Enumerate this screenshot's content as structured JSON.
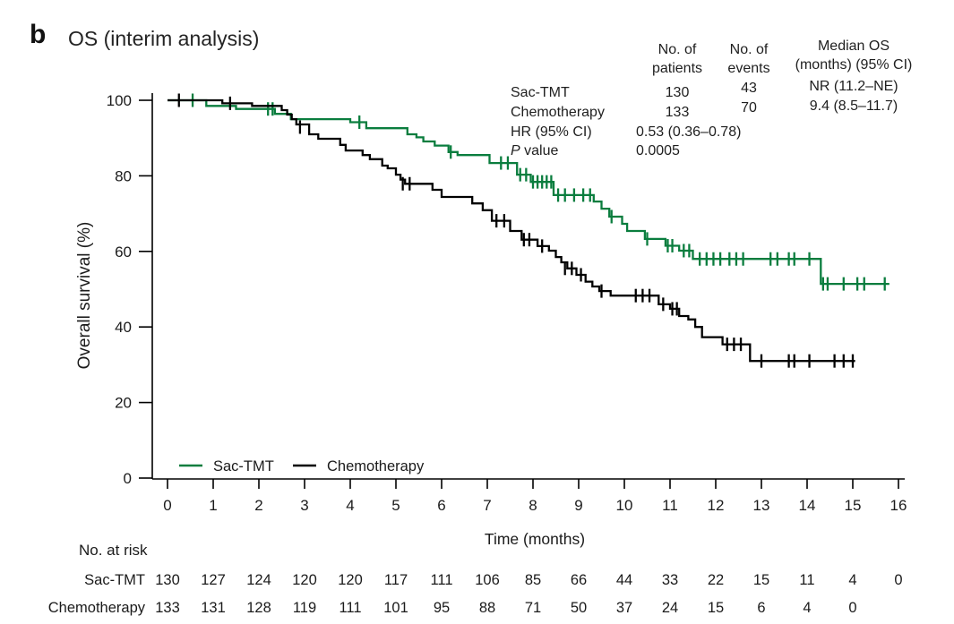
{
  "header": {
    "panel": "b",
    "title": "OS (interim analysis)"
  },
  "stats": {
    "columns": {
      "patients_header": "No. of\npatients",
      "events_header": "No. of\nevents",
      "median_header": "Median OS\n(months) (95% CI)"
    },
    "rows": [
      {
        "label": "Sac-TMT",
        "patients": "130",
        "events": "43",
        "median": "NR (11.2–NE)"
      },
      {
        "label": "Chemotherapy",
        "patients": "133",
        "events": "70",
        "median": "9.4 (8.5–11.7)"
      }
    ],
    "hr_label": "HR (95% CI)",
    "hr_value": "0.53 (0.36–0.78)",
    "p_label_italic": "P",
    "p_label_rest": " value",
    "p_value": "0.0005"
  },
  "chart_data": {
    "type": "line",
    "subtype": "kaplan-meier-step",
    "title": "OS (interim analysis)",
    "xlabel": "Time (months)",
    "ylabel": "Overall survival (%)",
    "xlim": [
      0,
      16
    ],
    "ylim": [
      0,
      100
    ],
    "xticks": [
      0,
      1,
      2,
      3,
      4,
      5,
      6,
      7,
      8,
      9,
      10,
      11,
      12,
      13,
      14,
      15,
      16
    ],
    "yticks": [
      0,
      20,
      40,
      60,
      80,
      100
    ],
    "grid": false,
    "legend_position": "inside-bottom-left",
    "series": [
      {
        "name": "Sac-TMT",
        "color": "#0a7d3e",
        "steps": [
          [
            0,
            100
          ],
          [
            0.85,
            98.5
          ],
          [
            1.5,
            97.7
          ],
          [
            2.35,
            96.4
          ],
          [
            2.7,
            95.0
          ],
          [
            4.0,
            94.2
          ],
          [
            4.35,
            92.6
          ],
          [
            5.25,
            91.0
          ],
          [
            5.45,
            90.2
          ],
          [
            5.6,
            89.1
          ],
          [
            5.85,
            88.0
          ],
          [
            6.15,
            86.3
          ],
          [
            6.35,
            85.5
          ],
          [
            7.05,
            83.4
          ],
          [
            7.65,
            80.3
          ],
          [
            7.95,
            78.4
          ],
          [
            8.45,
            74.9
          ],
          [
            9.33,
            73.2
          ],
          [
            9.5,
            71.3
          ],
          [
            9.67,
            69.2
          ],
          [
            9.95,
            67.3
          ],
          [
            10.06,
            65.4
          ],
          [
            10.45,
            63.3
          ],
          [
            10.9,
            61.5
          ],
          [
            11.2,
            60.2
          ],
          [
            11.5,
            58.0
          ],
          [
            14.3,
            51.4
          ],
          [
            15.8,
            51.4
          ]
        ],
        "censors": [
          [
            0.55,
            100
          ],
          [
            2.2,
            97.7
          ],
          [
            2.3,
            97.7
          ],
          [
            4.2,
            94.2
          ],
          [
            6.2,
            86.3
          ],
          [
            7.3,
            83.4
          ],
          [
            7.45,
            83.4
          ],
          [
            7.72,
            80.3
          ],
          [
            7.85,
            80.3
          ],
          [
            8.0,
            78.4
          ],
          [
            8.1,
            78.4
          ],
          [
            8.2,
            78.4
          ],
          [
            8.3,
            78.4
          ],
          [
            8.4,
            78.4
          ],
          [
            8.55,
            74.9
          ],
          [
            8.7,
            74.9
          ],
          [
            8.9,
            74.9
          ],
          [
            9.1,
            74.9
          ],
          [
            9.25,
            74.9
          ],
          [
            9.72,
            69.2
          ],
          [
            10.5,
            63.3
          ],
          [
            10.95,
            61.5
          ],
          [
            11.05,
            61.5
          ],
          [
            11.3,
            60.2
          ],
          [
            11.42,
            60.2
          ],
          [
            11.65,
            58.0
          ],
          [
            11.8,
            58.0
          ],
          [
            11.95,
            58.0
          ],
          [
            12.1,
            58.0
          ],
          [
            12.3,
            58.0
          ],
          [
            12.45,
            58.0
          ],
          [
            12.6,
            58.0
          ],
          [
            13.2,
            58.0
          ],
          [
            13.35,
            58.0
          ],
          [
            13.6,
            58.0
          ],
          [
            13.72,
            58.0
          ],
          [
            14.05,
            58.0
          ],
          [
            14.35,
            51.4
          ],
          [
            14.45,
            51.4
          ],
          [
            14.8,
            51.4
          ],
          [
            15.1,
            51.4
          ],
          [
            15.25,
            51.4
          ],
          [
            15.7,
            51.4
          ]
        ]
      },
      {
        "name": "Chemotherapy",
        "color": "#000000",
        "steps": [
          [
            0,
            100
          ],
          [
            1.2,
            99.2
          ],
          [
            1.85,
            98.5
          ],
          [
            2.5,
            97.4
          ],
          [
            2.62,
            96.2
          ],
          [
            2.72,
            95.0
          ],
          [
            2.82,
            93.6
          ],
          [
            3.1,
            91.0
          ],
          [
            3.3,
            89.8
          ],
          [
            3.78,
            88.2
          ],
          [
            3.9,
            86.7
          ],
          [
            4.27,
            85.5
          ],
          [
            4.43,
            84.4
          ],
          [
            4.7,
            82.7
          ],
          [
            4.82,
            82.0
          ],
          [
            5.0,
            80.3
          ],
          [
            5.1,
            79.0
          ],
          [
            5.2,
            77.9
          ],
          [
            5.8,
            76.3
          ],
          [
            6.0,
            74.4
          ],
          [
            6.67,
            72.7
          ],
          [
            6.9,
            70.9
          ],
          [
            7.1,
            68.1
          ],
          [
            7.5,
            65.4
          ],
          [
            7.75,
            63.1
          ],
          [
            8.1,
            61.4
          ],
          [
            8.35,
            60.2
          ],
          [
            8.5,
            58.5
          ],
          [
            8.62,
            57.1
          ],
          [
            8.75,
            55.5
          ],
          [
            8.95,
            53.8
          ],
          [
            9.15,
            52.0
          ],
          [
            9.3,
            50.7
          ],
          [
            9.45,
            49.5
          ],
          [
            9.7,
            48.3
          ],
          [
            10.75,
            46.0
          ],
          [
            11.0,
            44.8
          ],
          [
            11.2,
            42.9
          ],
          [
            11.4,
            42.0
          ],
          [
            11.55,
            40.0
          ],
          [
            11.7,
            37.3
          ],
          [
            12.15,
            35.4
          ],
          [
            12.75,
            31.0
          ],
          [
            15.05,
            31.0
          ]
        ],
        "censors": [
          [
            0.25,
            100
          ],
          [
            1.37,
            99.2
          ],
          [
            2.9,
            92.9
          ],
          [
            5.15,
            77.9
          ],
          [
            5.3,
            77.9
          ],
          [
            7.2,
            68.1
          ],
          [
            7.37,
            68.1
          ],
          [
            7.8,
            63.1
          ],
          [
            7.92,
            63.1
          ],
          [
            8.2,
            61.4
          ],
          [
            8.7,
            55.5
          ],
          [
            8.85,
            55.5
          ],
          [
            9.05,
            53.8
          ],
          [
            9.5,
            49.5
          ],
          [
            10.25,
            48.3
          ],
          [
            10.4,
            48.3
          ],
          [
            10.55,
            48.3
          ],
          [
            10.85,
            46.0
          ],
          [
            11.05,
            44.8
          ],
          [
            11.15,
            44.8
          ],
          [
            12.25,
            35.4
          ],
          [
            12.4,
            35.4
          ],
          [
            12.55,
            35.4
          ],
          [
            13.0,
            31.0
          ],
          [
            13.6,
            31.0
          ],
          [
            13.72,
            31.0
          ],
          [
            14.05,
            31.0
          ],
          [
            14.6,
            31.0
          ],
          [
            14.8,
            31.0
          ],
          [
            15.0,
            31.0
          ]
        ]
      }
    ],
    "risk_table": {
      "label": "No. at risk",
      "rows": [
        {
          "name": "Sac-TMT",
          "label_color": "#1b1b1b",
          "value_color": "#2e8b5f",
          "values": [
            130,
            127,
            124,
            120,
            120,
            117,
            111,
            106,
            85,
            66,
            44,
            33,
            22,
            15,
            11,
            4,
            0
          ]
        },
        {
          "name": "Chemotherapy",
          "label_color": "#1b1b1b",
          "value_color": "#1b1b1b",
          "values": [
            133,
            131,
            128,
            119,
            111,
            101,
            95,
            88,
            71,
            50,
            37,
            24,
            15,
            6,
            4,
            0
          ]
        }
      ]
    }
  }
}
